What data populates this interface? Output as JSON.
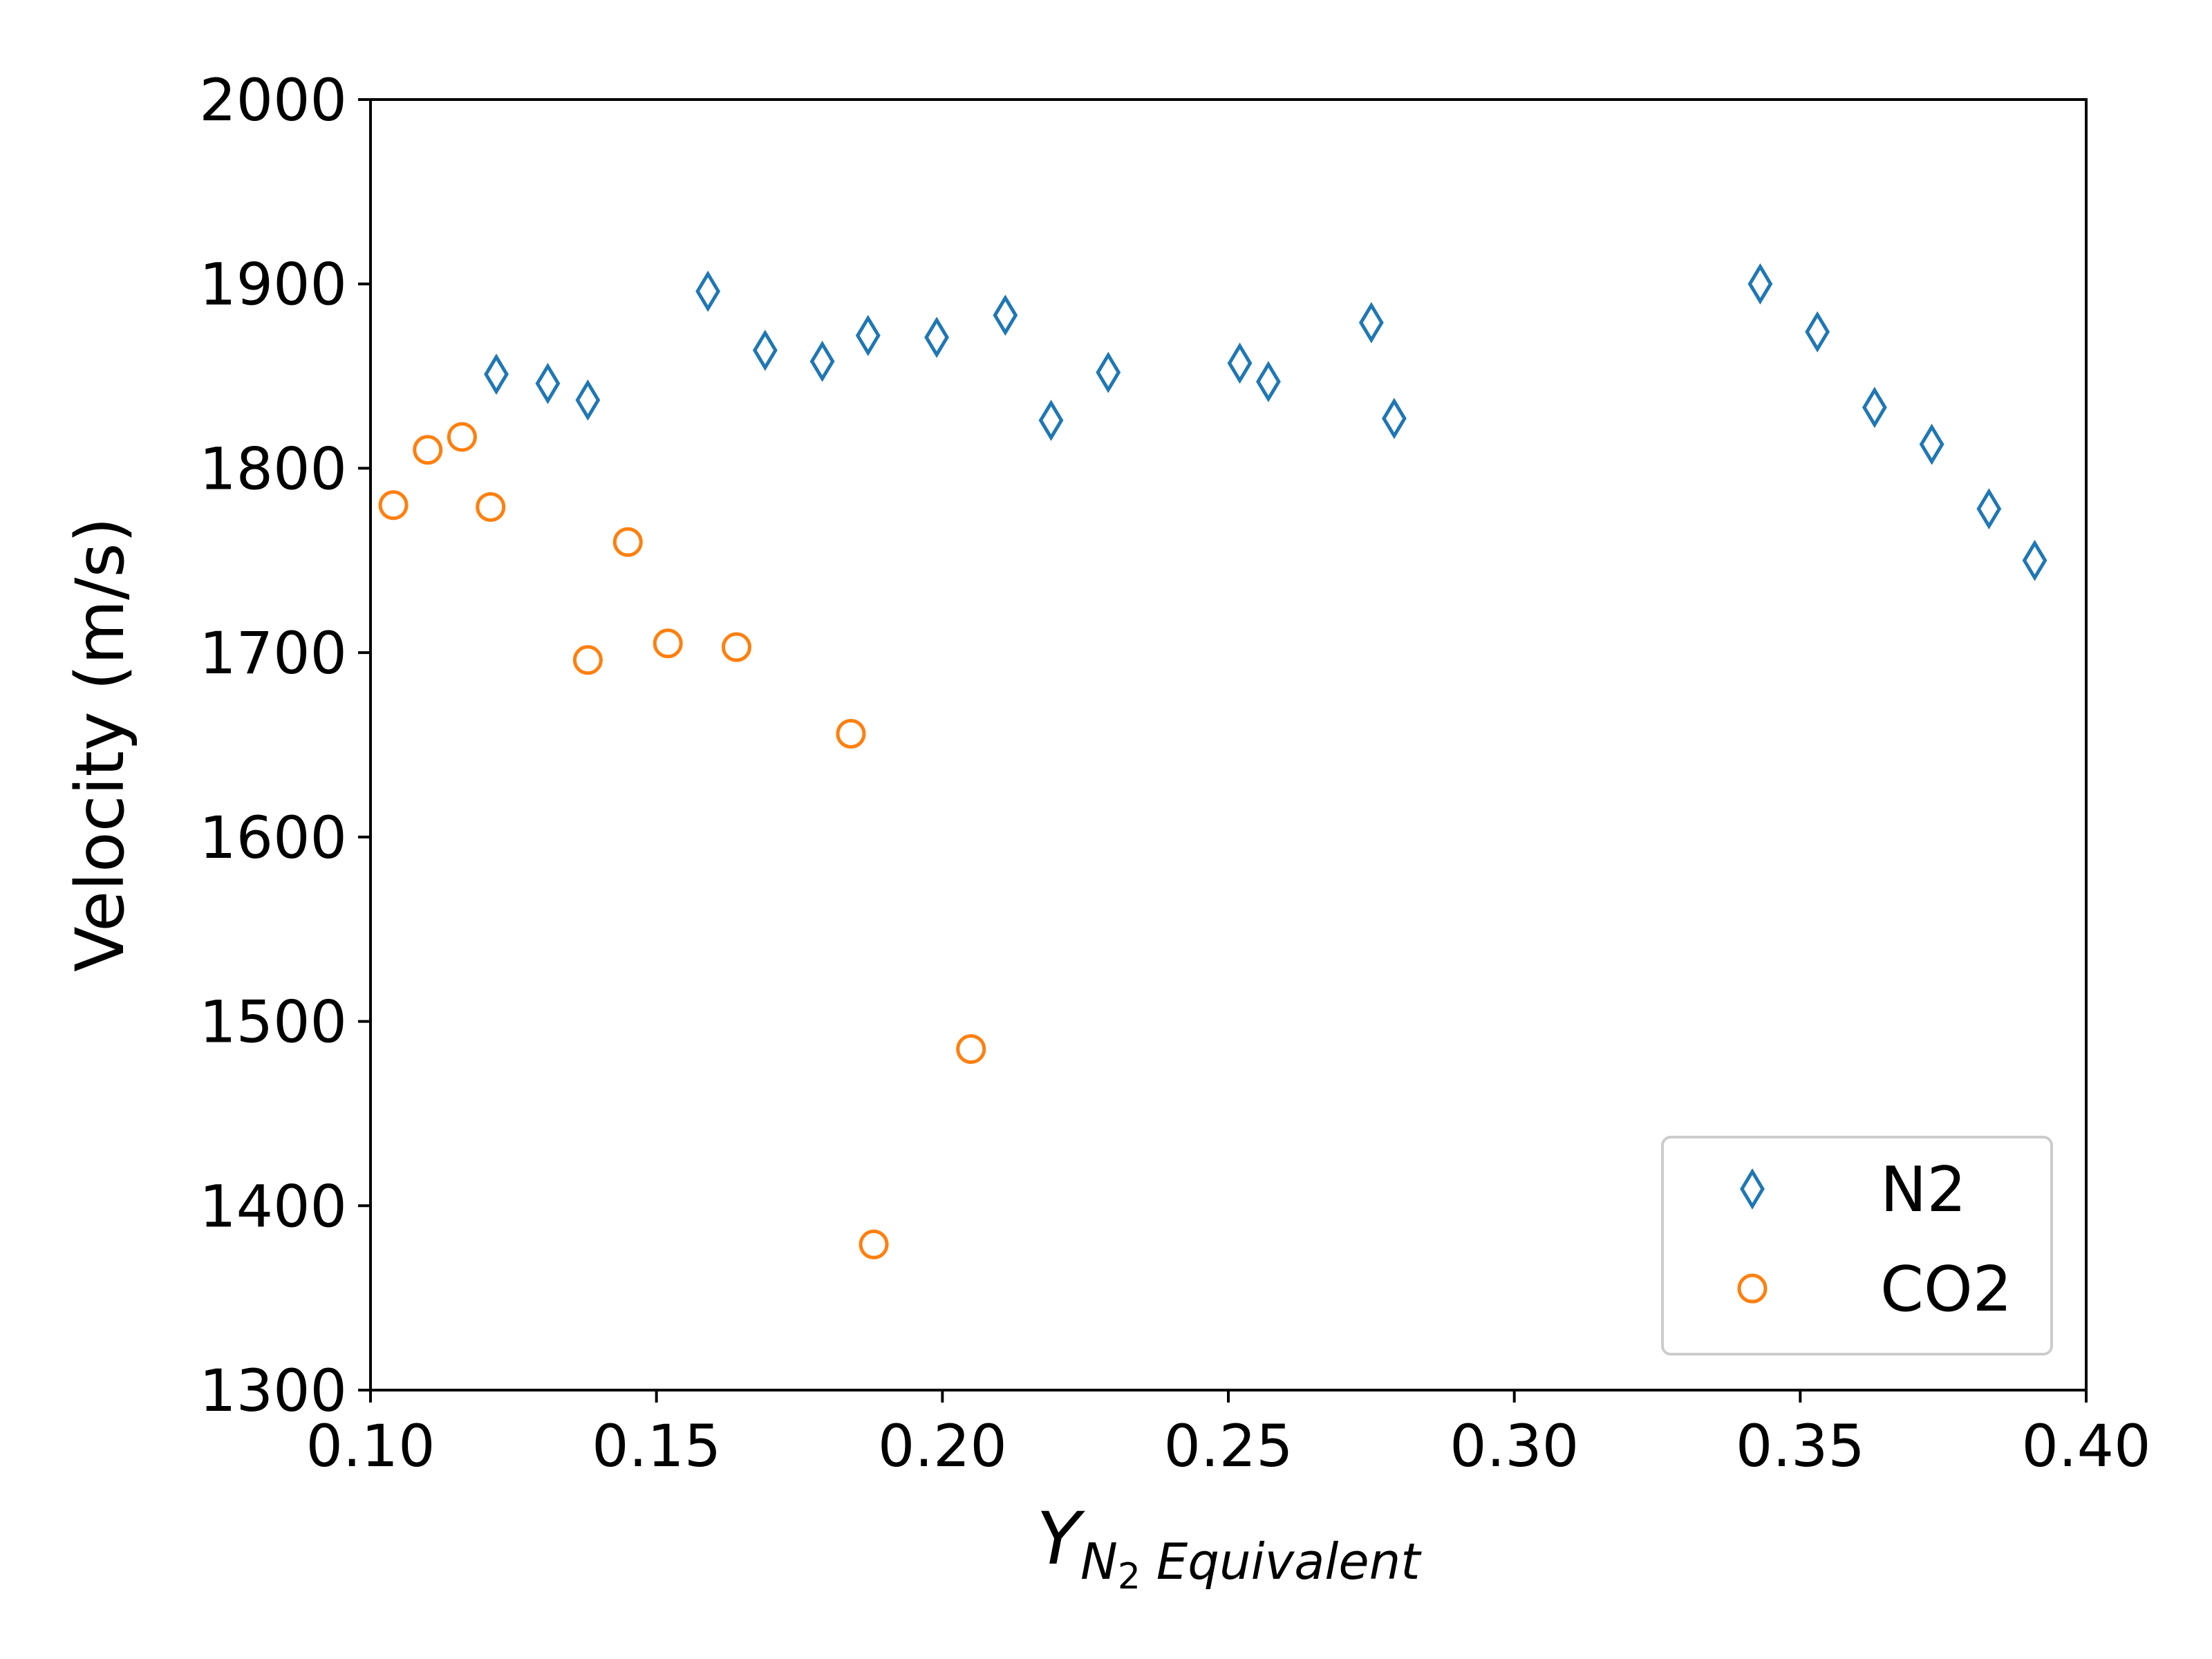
{
  "chart_data": {
    "type": "scatter",
    "xlabel": {
      "main": "Y",
      "subscript": "N",
      "subsubscript": "2",
      "suffix": " Equivalent"
    },
    "ylabel": "Velocity (m/s)",
    "xlim": [
      0.1,
      0.4
    ],
    "ylim": [
      1300,
      2000
    ],
    "xticks": [
      "0.10",
      "0.15",
      "0.20",
      "0.25",
      "0.30",
      "0.35",
      "0.40"
    ],
    "yticks": [
      "1300",
      "1400",
      "1500",
      "1600",
      "1700",
      "1800",
      "1900",
      "2000"
    ],
    "grid": false,
    "legend_position": "lower-right",
    "series": [
      {
        "name": "N2",
        "marker": "thin-diamond",
        "color": "#1f77b4",
        "x": [
          0.122,
          0.131,
          0.138,
          0.159,
          0.169,
          0.179,
          0.187,
          0.199,
          0.211,
          0.219,
          0.229,
          0.252,
          0.257,
          0.275,
          0.279,
          0.343,
          0.353,
          0.363,
          0.373,
          0.383,
          0.391
        ],
        "y": [
          1851,
          1846,
          1837,
          1896,
          1864,
          1858,
          1872,
          1871,
          1883,
          1826,
          1852,
          1857,
          1847,
          1879,
          1827,
          1900,
          1874,
          1833,
          1813,
          1778,
          1750
        ]
      },
      {
        "name": "CO2",
        "marker": "circle",
        "color": "#ff7f0e",
        "x": [
          0.104,
          0.11,
          0.116,
          0.121,
          0.138,
          0.145,
          0.152,
          0.164,
          0.184,
          0.188,
          0.205
        ],
        "y": [
          1780,
          1810,
          1817,
          1779,
          1696,
          1760,
          1705,
          1703,
          1656,
          1379,
          1485
        ]
      }
    ]
  }
}
